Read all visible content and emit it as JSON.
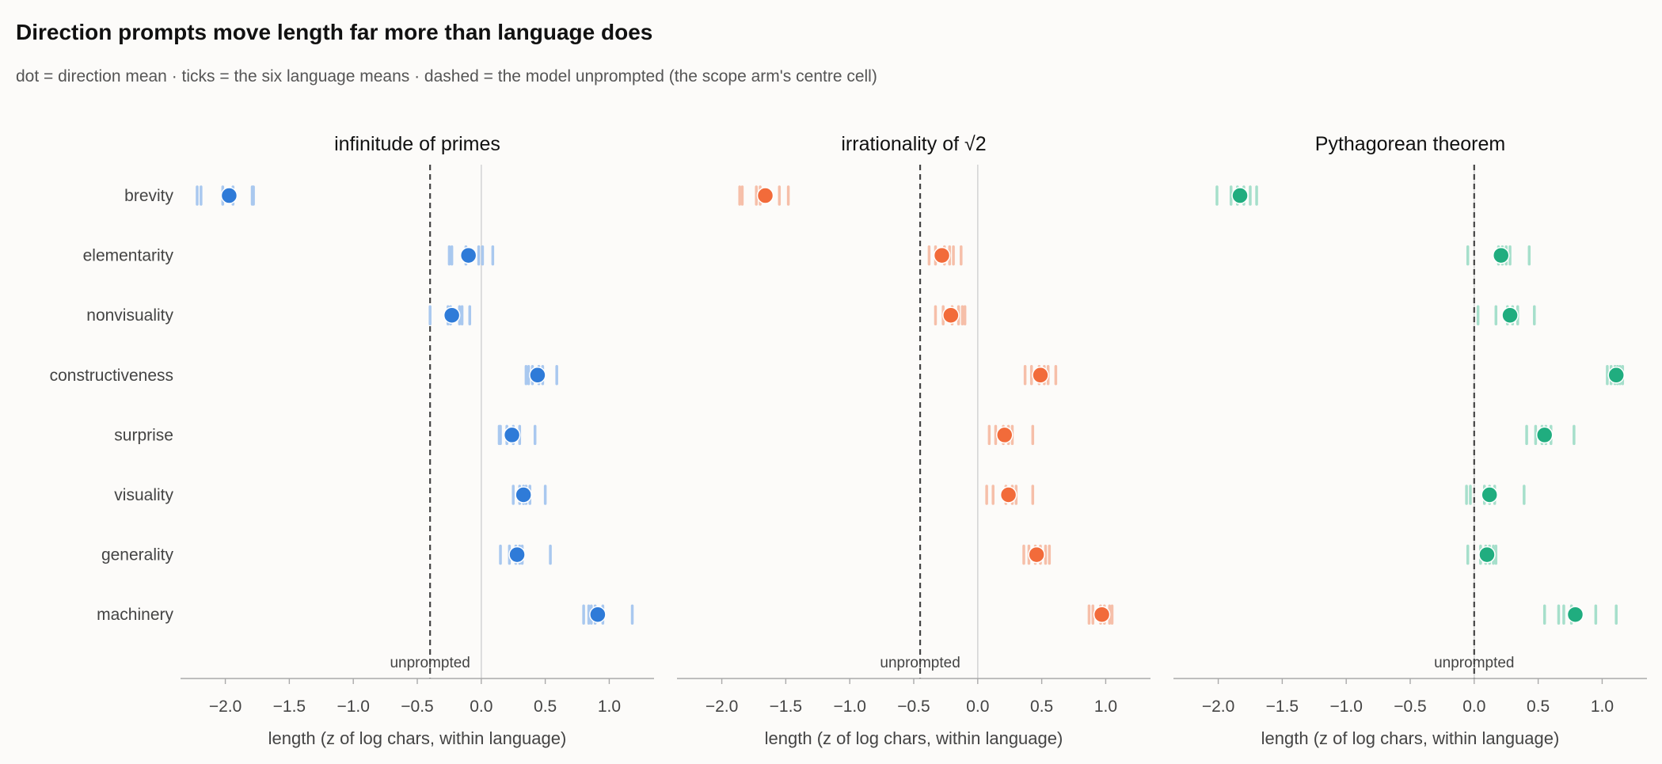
{
  "title": "Direction prompts move length far more than language does",
  "subtitle": "dot = direction mean · ticks = the six language means · dashed = the model unprompted (the scope arm's centre cell)",
  "chart_data": {
    "type": "scatter",
    "categories": [
      "brevity",
      "elementarity",
      "nonvisuality",
      "constructiveness",
      "surprise",
      "visuality",
      "generality",
      "machinery"
    ],
    "xlabel": "length (z of log chars, within language)",
    "xlim": [
      -2.35,
      1.35
    ],
    "xticks": [
      -2.0,
      -1.5,
      -1.0,
      -0.5,
      0.0,
      0.5,
      1.0
    ],
    "xtick_labels": [
      "−2.0",
      "−1.5",
      "−1.0",
      "−0.5",
      "0.0",
      "0.5",
      "1.0"
    ],
    "reference_label": "unprompted",
    "panels": [
      {
        "title": "infinitude of primes",
        "color": "#2f7bd8",
        "tick_color": "#a9c8ef",
        "unprompted": -0.4,
        "means": [
          -1.97,
          -0.1,
          -0.23,
          0.44,
          0.24,
          0.33,
          0.28,
          0.91
        ],
        "language_means": [
          [
            -2.22,
            -2.19,
            -2.02,
            -1.94,
            -1.79,
            -1.78
          ],
          [
            -0.25,
            -0.23,
            -0.12,
            -0.02,
            0.01,
            0.09
          ],
          [
            -0.4,
            -0.26,
            -0.17,
            -0.15,
            -0.09,
            -0.24
          ],
          [
            0.35,
            0.37,
            0.4,
            0.45,
            0.48,
            0.59
          ],
          [
            0.14,
            0.15,
            0.25,
            0.3,
            0.42,
            0.2
          ],
          [
            0.25,
            0.3,
            0.33,
            0.35,
            0.38,
            0.5
          ],
          [
            0.15,
            0.22,
            0.27,
            0.3,
            0.32,
            0.54
          ],
          [
            0.8,
            0.84,
            0.86,
            0.89,
            0.95,
            1.18
          ]
        ]
      },
      {
        "title": "irrationality of √2",
        "color": "#f26b3a",
        "tick_color": "#f6bfa9",
        "unprompted": -0.45,
        "means": [
          -1.66,
          -0.28,
          -0.21,
          0.49,
          0.21,
          0.24,
          0.46,
          0.97
        ],
        "language_means": [
          [
            -1.86,
            -1.84,
            -1.73,
            -1.7,
            -1.55,
            -1.48
          ],
          [
            -0.38,
            -0.33,
            -0.26,
            -0.22,
            -0.19,
            -0.13
          ],
          [
            -0.33,
            -0.27,
            -0.2,
            -0.15,
            -0.12,
            -0.1
          ],
          [
            0.37,
            0.42,
            0.48,
            0.52,
            0.55,
            0.61
          ],
          [
            0.09,
            0.14,
            0.2,
            0.24,
            0.27,
            0.43
          ],
          [
            0.07,
            0.12,
            0.22,
            0.27,
            0.3,
            0.43
          ],
          [
            0.36,
            0.4,
            0.45,
            0.49,
            0.53,
            0.56
          ],
          [
            0.87,
            0.9,
            0.96,
            0.99,
            1.03,
            1.05
          ]
        ]
      },
      {
        "title": "Pythagorean theorem",
        "color": "#20ad7f",
        "tick_color": "#a6dfcb",
        "unprompted": 0.0,
        "means": [
          -1.83,
          0.21,
          0.28,
          1.11,
          0.55,
          0.12,
          0.1,
          0.79
        ],
        "language_means": [
          [
            -2.01,
            -1.9,
            -1.85,
            -1.8,
            -1.75,
            -1.7
          ],
          [
            -0.05,
            0.19,
            0.22,
            0.25,
            0.28,
            0.43
          ],
          [
            0.03,
            0.17,
            0.26,
            0.3,
            0.34,
            0.47
          ],
          [
            1.04,
            1.07,
            1.1,
            1.12,
            1.14,
            1.16
          ],
          [
            0.41,
            0.48,
            0.53,
            0.56,
            0.6,
            0.78
          ],
          [
            -0.06,
            -0.03,
            0.08,
            0.12,
            0.16,
            0.39
          ],
          [
            -0.05,
            0.05,
            0.09,
            0.12,
            0.15,
            0.17
          ],
          [
            0.55,
            0.66,
            0.7,
            0.76,
            0.95,
            1.11
          ]
        ]
      }
    ]
  }
}
